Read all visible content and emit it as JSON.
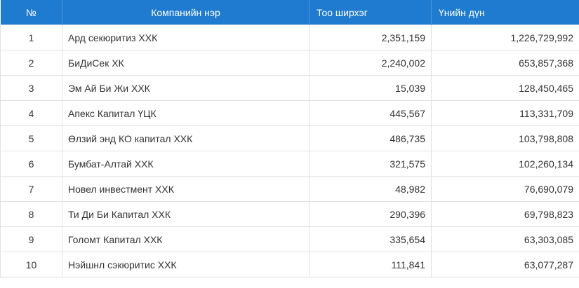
{
  "table": {
    "header": [
      "№",
      "Компанийн нэр",
      "Тоо ширхэг",
      "Үнийн дүн"
    ],
    "rows": [
      [
        "1",
        "Ард секюритиз ХХК",
        "2,351,159",
        "1,226,729,992"
      ],
      [
        "2",
        "БиДиСек ХК",
        "2,240,002",
        "653,857,368"
      ],
      [
        "3",
        "Эм Ай Би Жи ХХК",
        "15,039",
        "128,450,465"
      ],
      [
        "4",
        "Апекс Капитал ҮЦК",
        "445,567",
        "113,331,709"
      ],
      [
        "5",
        "Өлзий энд КО капитал ХХК",
        "486,735",
        "103,798,808"
      ],
      [
        "6",
        "Бумбат-Алтай ХХК",
        "321,575",
        "102,260,134"
      ],
      [
        "7",
        "Новел инвестмент ХХК",
        "48,982",
        "76,690,079"
      ],
      [
        "8",
        "Ти Ди Би Капитал ХХК",
        "290,396",
        "69,798,823"
      ],
      [
        "9",
        "Голомт Капитал ХХК",
        "335,654",
        "63,303,085"
      ],
      [
        "10",
        "Нэйшнл сэкюритис ХХК",
        "111,841",
        "63,077,287"
      ]
    ]
  }
}
